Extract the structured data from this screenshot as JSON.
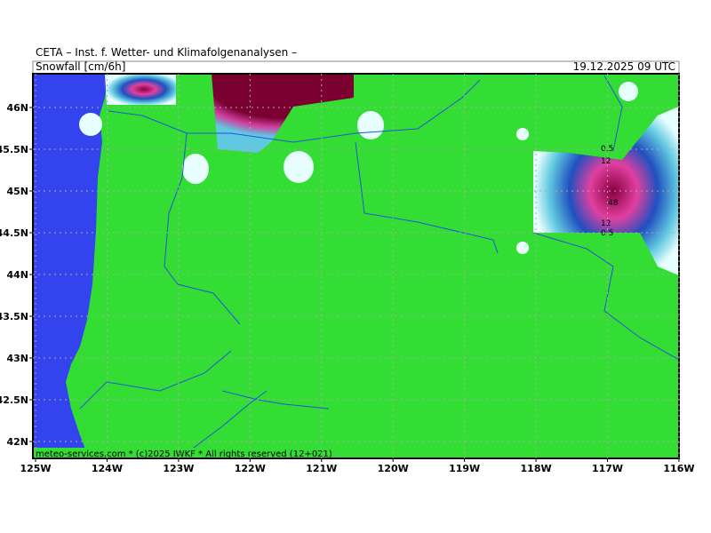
{
  "header": {
    "title": "CETA – Inst. f. Wetter- und Klimafolgenanalysen –",
    "variable": "Snowfall [cm/6h]",
    "valid_time": "19.12.2025 09 UTC"
  },
  "footer": "meteo-services.com * (c)2025 IWKF * All rights reserved (12+021)",
  "map": {
    "lat_ticks": [
      {
        "value": 46,
        "label": "46N"
      },
      {
        "value": 45.5,
        "label": "45.5N"
      },
      {
        "value": 45,
        "label": "45N"
      },
      {
        "value": 44.5,
        "label": "44.5N"
      },
      {
        "value": 44,
        "label": "44N"
      },
      {
        "value": 43.5,
        "label": "43.5N"
      },
      {
        "value": 43,
        "label": "43N"
      },
      {
        "value": 42.5,
        "label": "42.5N"
      },
      {
        "value": 42,
        "label": "42N"
      }
    ],
    "lon_ticks": [
      {
        "value": -125,
        "label": "125W"
      },
      {
        "value": -124,
        "label": "124W"
      },
      {
        "value": -123,
        "label": "123W"
      },
      {
        "value": -122,
        "label": "122W"
      },
      {
        "value": -121,
        "label": "121W"
      },
      {
        "value": -120,
        "label": "120W"
      },
      {
        "value": -119,
        "label": "119W"
      },
      {
        "value": -118,
        "label": "118W"
      },
      {
        "value": -117,
        "label": "117W"
      },
      {
        "value": -116,
        "label": "116W"
      }
    ],
    "contour_labels": [
      "0.5",
      "12",
      "48",
      "12",
      "0.5"
    ]
  }
}
